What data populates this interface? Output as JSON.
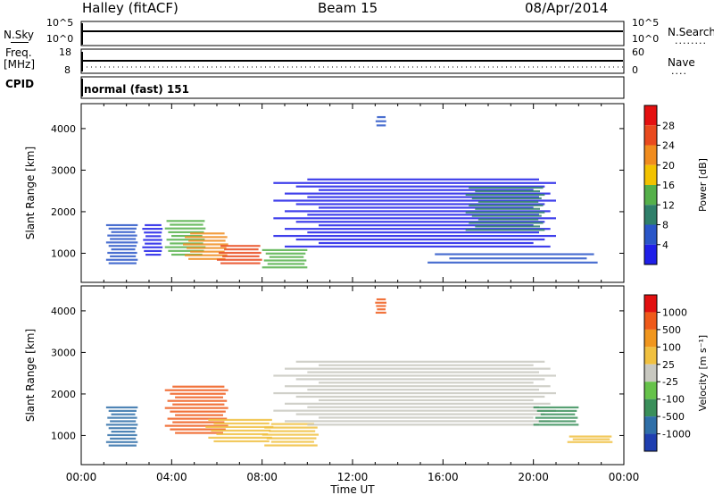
{
  "header": {
    "radar": "Halley (fitACF)",
    "beam": "Beam 15",
    "date": "08/Apr/2014"
  },
  "panels": {
    "nsky": {
      "left_label": "N.Sky",
      "right_label": "N.Search",
      "left_ticks": [
        "10^5",
        "10^0"
      ],
      "right_ticks": [
        "10^5",
        "10^0"
      ],
      "right_marker": "········"
    },
    "freq": {
      "left_label_top": "Freq.",
      "left_label_unit": "[MHz]",
      "right_label": "Nave",
      "left_ticks": [
        "18",
        "8"
      ],
      "right_ticks": [
        "60",
        "0"
      ],
      "right_marker": "····"
    },
    "cpid": {
      "label": "CPID",
      "value": "normal (fast) 151"
    }
  },
  "chart_data": [
    {
      "type": "heatmap",
      "name": "power",
      "ylabel": "Slant Range [km]",
      "ylim": [
        300,
        4600
      ],
      "yticks": [
        "1000",
        "2000",
        "3000",
        "4000"
      ],
      "xlim": [
        0,
        24
      ],
      "colorbar": {
        "label": "Power [dB]",
        "ticks": [
          "4",
          "8",
          "12",
          "16",
          "20",
          "24",
          "28"
        ],
        "colors": [
          "#1f1fe8",
          "#2a56c8",
          "#2f7f6a",
          "#55b04a",
          "#f2c200",
          "#f08c1e",
          "#e94a1e",
          "#e41010"
        ]
      },
      "regions": [
        {
          "t0": 1.1,
          "t1": 2.5,
          "r0": 700,
          "r1": 1700,
          "level": 1
        },
        {
          "t0": 2.7,
          "t1": 3.6,
          "r0": 900,
          "r1": 1700,
          "level": 0
        },
        {
          "t0": 3.7,
          "t1": 5.5,
          "r0": 900,
          "r1": 1800,
          "level": 3
        },
        {
          "t0": 4.5,
          "t1": 6.5,
          "r0": 800,
          "r1": 1500,
          "level": 5
        },
        {
          "t0": 6.0,
          "t1": 8.0,
          "r0": 700,
          "r1": 1200,
          "level": 6
        },
        {
          "t0": 8.0,
          "t1": 10.0,
          "r0": 600,
          "r1": 1100,
          "level": 3
        },
        {
          "t0": 8.5,
          "t1": 21.0,
          "r0": 1100,
          "r1": 2800,
          "level": 0
        },
        {
          "t0": 17.0,
          "t1": 20.5,
          "r0": 1500,
          "r1": 2600,
          "level": 2
        },
        {
          "t0": 13.0,
          "t1": 13.5,
          "r0": 4000,
          "r1": 4300,
          "level": 1
        },
        {
          "t0": 15.0,
          "t1": 23.0,
          "r0": 700,
          "r1": 1000,
          "level": 1
        }
      ]
    },
    {
      "type": "heatmap",
      "name": "velocity",
      "ylabel": "Slant Range [km]",
      "ylim": [
        300,
        4600
      ],
      "yticks": [
        "1000",
        "2000",
        "3000",
        "4000"
      ],
      "xlim": [
        0,
        24
      ],
      "xticks": [
        "00:00",
        "04:00",
        "08:00",
        "12:00",
        "16:00",
        "20:00",
        "00:00"
      ],
      "xlabel": "Time UT",
      "colorbar": {
        "label": "Velocity [m s⁻¹]",
        "ticks": [
          "1000",
          "500",
          "100",
          "25",
          "-25",
          "-100",
          "-500",
          "-1000"
        ],
        "colors": [
          "#1f3fb0",
          "#2f6fa8",
          "#3a8f5a",
          "#66c24a",
          "#c8c8c0",
          "#f0c040",
          "#f0961e",
          "#ef5a1a",
          "#e21010"
        ]
      },
      "regions": [
        {
          "t0": 1.1,
          "t1": 2.5,
          "r0": 700,
          "r1": 1700,
          "level": 1
        },
        {
          "t0": 3.7,
          "t1": 6.5,
          "r0": 1000,
          "r1": 2200,
          "level": 7
        },
        {
          "t0": 5.5,
          "t1": 8.5,
          "r0": 800,
          "r1": 1400,
          "level": 5
        },
        {
          "t0": 8.0,
          "t1": 10.5,
          "r0": 700,
          "r1": 1300,
          "level": 5
        },
        {
          "t0": 8.5,
          "t1": 21.0,
          "r0": 1200,
          "r1": 2800,
          "level": 4
        },
        {
          "t0": 20.0,
          "t1": 22.0,
          "r0": 1200,
          "r1": 1700,
          "level": 2
        },
        {
          "t0": 13.0,
          "t1": 13.5,
          "r0": 3900,
          "r1": 4300,
          "level": 7
        },
        {
          "t0": 21.5,
          "t1": 23.5,
          "r0": 800,
          "r1": 1000,
          "level": 5
        }
      ]
    }
  ]
}
